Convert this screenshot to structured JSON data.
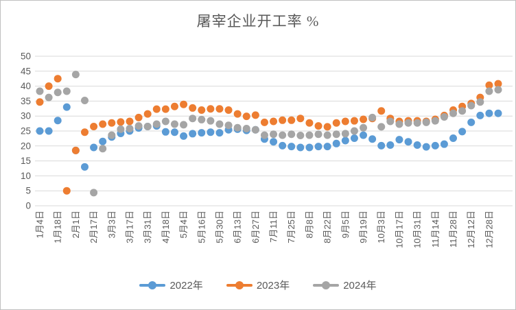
{
  "chart_data": {
    "type": "scatter",
    "title": "屠宰企业开工率  %",
    "ylabel": "",
    "xlabel": "",
    "ylim": [
      0,
      50
    ],
    "y_ticks": [
      0,
      5,
      10,
      15,
      20,
      25,
      30,
      35,
      40,
      45,
      50
    ],
    "x_tick_labels": [
      "1月4日",
      "1月18日",
      "2月1日",
      "2月17日",
      "3月3日",
      "3月17日",
      "3月31日",
      "4月18日",
      "5月4日",
      "5月16日",
      "5月30日",
      "6月13日",
      "6月27日",
      "7月11日",
      "7月25日",
      "8月8日",
      "8月22日",
      "9月5日",
      "9月19日",
      "10月3日",
      "10月17日",
      "10月31日",
      "11月14日",
      "11月28日",
      "12月12日",
      "12月28日"
    ],
    "x_label_every_n_points": 2,
    "grid": true,
    "grid_color": "#d9d9d9",
    "axis_text_color": "#595959",
    "legend_position": "bottom",
    "series": [
      {
        "name": "2022年",
        "color": "#5B9BD5",
        "values": [
          25,
          25,
          28.5,
          33,
          18.5,
          13,
          19.5,
          21.5,
          23,
          24.2,
          25,
          26,
          26.5,
          26.7,
          24.7,
          24.6,
          23.3,
          24.1,
          24.4,
          24.6,
          24.4,
          25.4,
          25.6,
          25.2,
          25.4,
          22.3,
          21.4,
          20.1,
          19.8,
          19.5,
          19.5,
          19.8,
          19.8,
          20.8,
          21.8,
          22.6,
          23.6,
          22.3,
          20.1,
          20.3,
          22.1,
          21.4,
          20.3,
          19.7,
          20.1,
          20.6,
          22.6,
          24.8,
          27.9,
          30.2,
          30.9,
          30.9
        ]
      },
      {
        "name": "2023年",
        "color": "#ED7D31",
        "values": [
          34.7,
          40,
          42.5,
          5,
          18.5,
          24.6,
          26.5,
          27.3,
          27.7,
          28,
          28.2,
          29.5,
          30.7,
          32.3,
          32.3,
          33.2,
          33.9,
          32.7,
          32,
          32.4,
          32.4,
          32,
          30.7,
          29.9,
          30.3,
          27.9,
          28.2,
          28.6,
          28.6,
          29.2,
          27.7,
          26.7,
          26.4,
          27.7,
          28.2,
          28.4,
          28.9,
          29.2,
          31.7,
          29.2,
          28.2,
          28.4,
          28.4,
          28.2,
          28.9,
          30.2,
          32,
          33.2,
          34.2,
          36.2,
          40.3,
          40.8
        ]
      },
      {
        "name": "2024年",
        "color": "#A5A5A5",
        "values": [
          38.3,
          36.2,
          37.9,
          38.3,
          43.9,
          35.2,
          4.4,
          19.1,
          23.6,
          25.6,
          25.8,
          26.7,
          26.5,
          27.3,
          28.2,
          27.3,
          27.1,
          29.2,
          28.8,
          28.4,
          27.3,
          26.9,
          26.1,
          25.8,
          25.4,
          23.6,
          23.9,
          23.6,
          23.9,
          23.5,
          23.6,
          23.9,
          23.6,
          23.9,
          24.1,
          25,
          26.1,
          29.5,
          26.4,
          28.2,
          27.3,
          27.7,
          27.7,
          27.9,
          28.4,
          29.7,
          30.9,
          31.7,
          33.5,
          34.7,
          38.3,
          38.8
        ]
      }
    ]
  }
}
